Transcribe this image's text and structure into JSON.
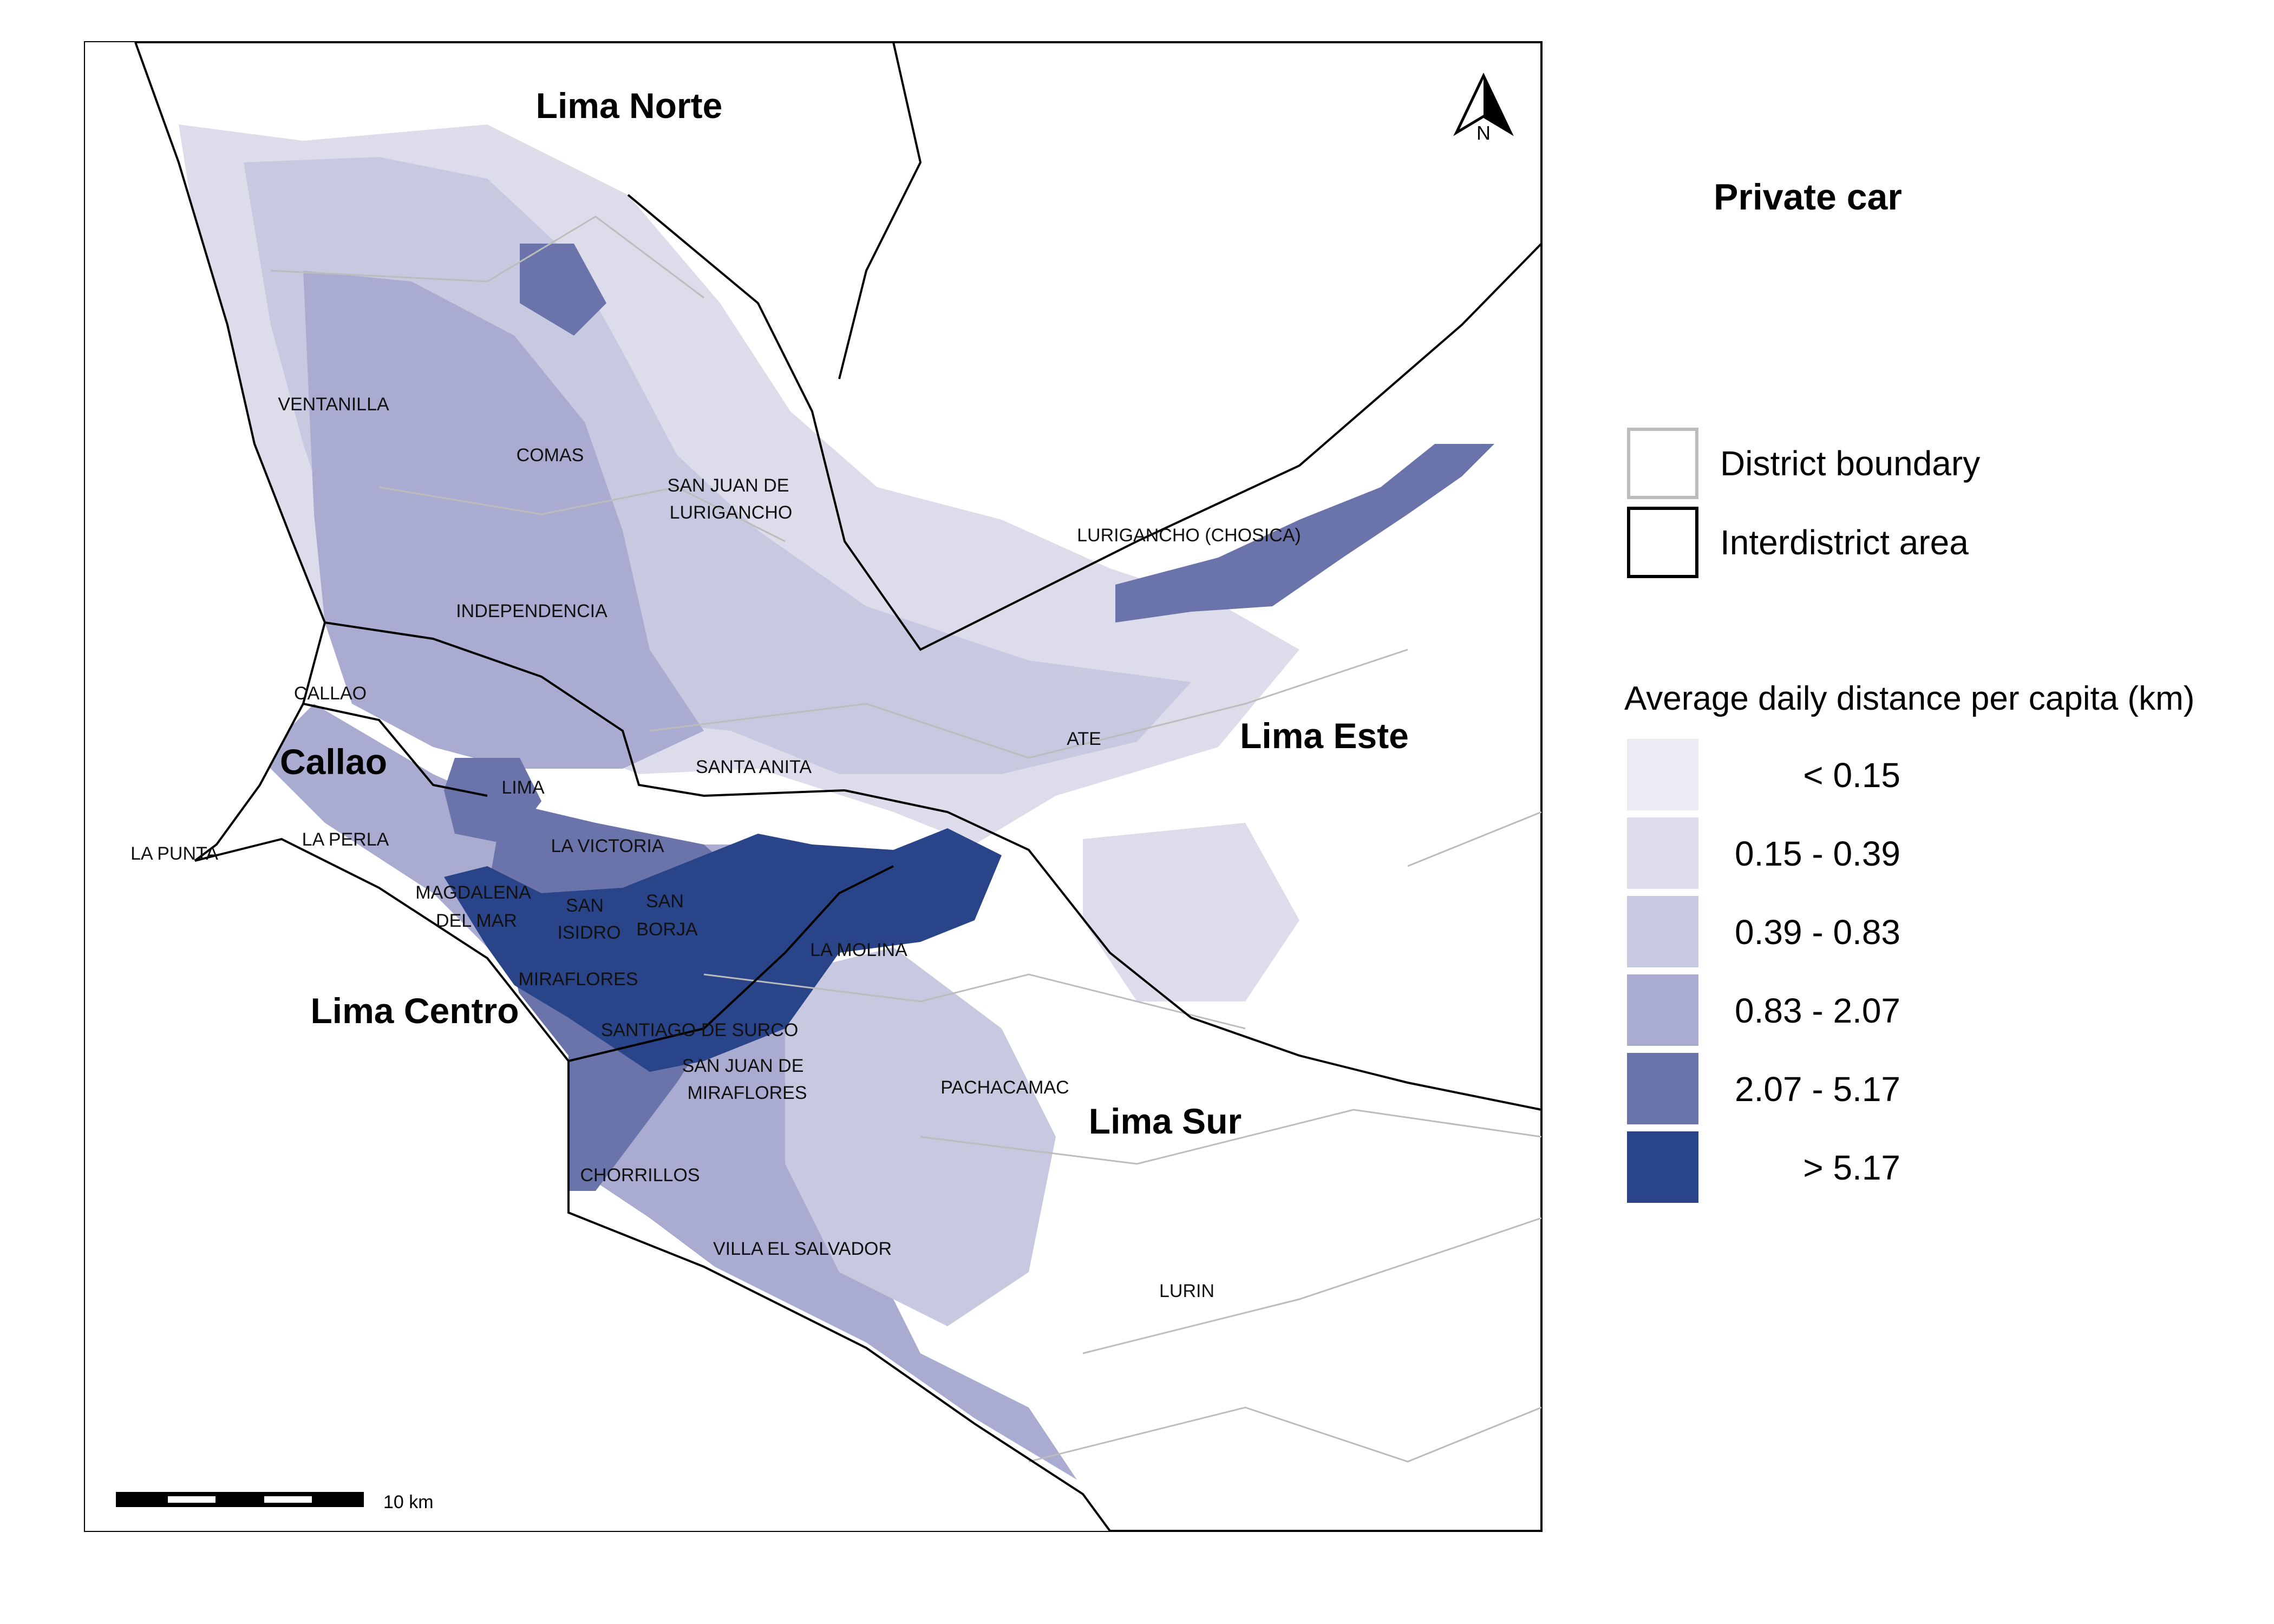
{
  "map": {
    "title": "Private car",
    "north_label": "N",
    "scale_label": "10 km",
    "interdistrict_areas": [
      "Lima Norte",
      "Callao",
      "Lima Centro",
      "Lima Este",
      "Lima Sur"
    ],
    "districts": [
      "VENTANILLA",
      "COMAS",
      "SAN JUAN DE",
      "LURIGANCHO",
      "INDEPENDENCIA",
      "CALLAO",
      "LIMA",
      "LA PERLA",
      "LA PUNTA",
      "LA VICTORIA",
      "SANTA ANITA",
      "MAGDALENA",
      "DEL MAR",
      "SAN",
      "ISIDRO",
      "SAN",
      "BORJA",
      "LA MOLINA",
      "MIRAFLORES",
      "SANTIAGO DE SURCO",
      "SAN JUAN DE",
      "MIRAFLORES",
      "CHORRILLOS",
      "VILLA EL SALVADOR",
      "PACHACAMAC",
      "LURIN",
      "ATE",
      "LURIGANCHO (CHOSICA)"
    ]
  },
  "legend": {
    "district_boundary": "District boundary",
    "interdistrict_area": "Interdistrict area",
    "heading": "Average daily distance per capita (km)",
    "classes": [
      {
        "label": "< 0.15",
        "color": "#ebebf3"
      },
      {
        "label": "0.15 - 0.39",
        "color": "#dcdcea"
      },
      {
        "label": "0.39 - 0.83",
        "color": "#c7c9e0"
      },
      {
        "label": "0.83 - 2.07",
        "color": "#a9acd0"
      },
      {
        "label": "2.07 - 5.17",
        "color": "#6a73aa"
      },
      {
        "label": "> 5.17",
        "color": "#2a4489"
      }
    ],
    "boundary_colors": {
      "district": "#bcbcbc",
      "interdistrict": "#000000"
    }
  }
}
